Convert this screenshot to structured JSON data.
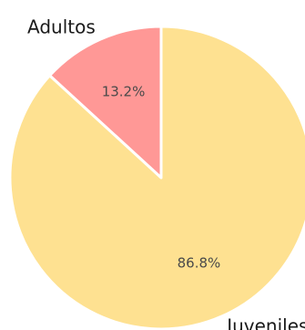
{
  "chart_data": {
    "type": "pie",
    "title": "",
    "slices": [
      {
        "label": "Adultos",
        "value": 13.2,
        "value_label": "13.2%",
        "color": "#ff9896"
      },
      {
        "label": "Juveniles",
        "value": 86.8,
        "value_label": "86.8%",
        "color": "#fee191"
      }
    ],
    "start_angle_deg": 90,
    "direction": "counterclockwise",
    "legend": "none"
  }
}
